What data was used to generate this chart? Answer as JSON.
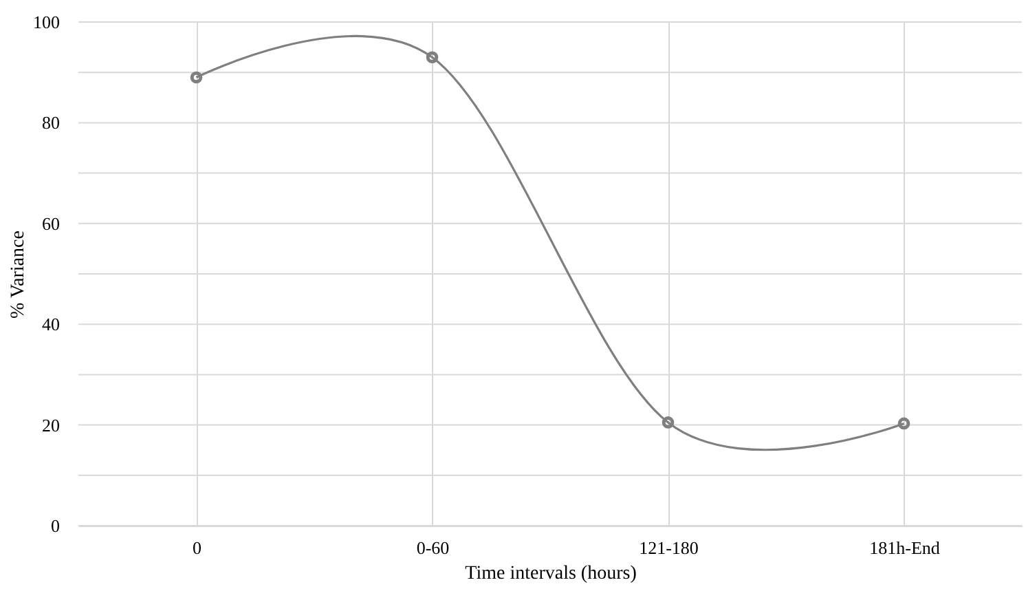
{
  "chart_data": {
    "type": "line",
    "xlabel": "Time intervals (hours)",
    "ylabel": "% Variance",
    "categories": [
      "0",
      "0-60",
      "121-180",
      "181h-End"
    ],
    "series": [
      {
        "color": "#7f7f7f",
        "values": [
          89,
          93,
          20.5,
          20.3
        ]
      }
    ],
    "ylim": [
      0,
      100
    ],
    "yticks": [
      0,
      {
        "value": 10,
        "label": null
      },
      20,
      {
        "value": 30,
        "label": null
      },
      40,
      {
        "value": 50,
        "label": null
      },
      60,
      {
        "value": 70,
        "label": null
      },
      80,
      {
        "value": 90,
        "label": null
      },
      100
    ],
    "grid": true,
    "marker": "circle",
    "line_style": "solid"
  }
}
